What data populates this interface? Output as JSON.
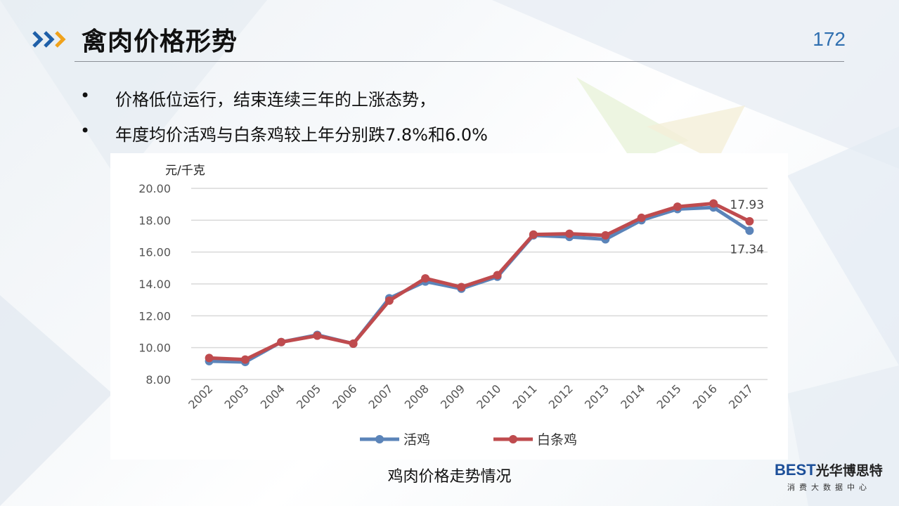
{
  "header": {
    "title": "禽肉价格形势",
    "page_number": "172"
  },
  "bullets": [
    {
      "marker": "•",
      "text": "价格低位运行，结束连续三年的上涨态势，"
    },
    {
      "marker": "•",
      "text": "年度均价活鸡与白条鸡较上年分别跌7.8%和6.0%"
    }
  ],
  "chart_data": {
    "type": "line",
    "title": "",
    "unit_label": "元/千克",
    "xlabel": "",
    "ylabel": "",
    "ylim": [
      8,
      20
    ],
    "y_ticks": [
      "20.00",
      "18.00",
      "16.00",
      "14.00",
      "12.00",
      "10.00",
      "8.00"
    ],
    "categories": [
      "2002",
      "2003",
      "2004",
      "2005",
      "2006",
      "2007",
      "2008",
      "2009",
      "2010",
      "2011",
      "2012",
      "2013",
      "2014",
      "2015",
      "2016",
      "2017"
    ],
    "series": [
      {
        "name": "活鸡",
        "color": "#5b84b9",
        "values": [
          9.15,
          9.1,
          10.35,
          10.8,
          10.25,
          13.1,
          14.15,
          13.7,
          14.45,
          17.05,
          16.95,
          16.8,
          18.0,
          18.7,
          18.8,
          17.34
        ]
      },
      {
        "name": "白条鸡",
        "color": "#bf4b4e",
        "values": [
          9.35,
          9.25,
          10.35,
          10.75,
          10.25,
          12.95,
          14.35,
          13.8,
          14.55,
          17.1,
          17.15,
          17.05,
          18.15,
          18.85,
          19.05,
          17.93
        ]
      }
    ],
    "data_labels": [
      "17.93",
      "17.34"
    ],
    "grid": true,
    "legend": "bottom"
  },
  "caption": "鸡肉价格走势情况",
  "logo": {
    "brand": "BEST",
    "brand_cn": "光华博思特",
    "tagline": "消费大数据中心"
  },
  "icons": {
    "title_icon": "triple-chevron-icon"
  }
}
